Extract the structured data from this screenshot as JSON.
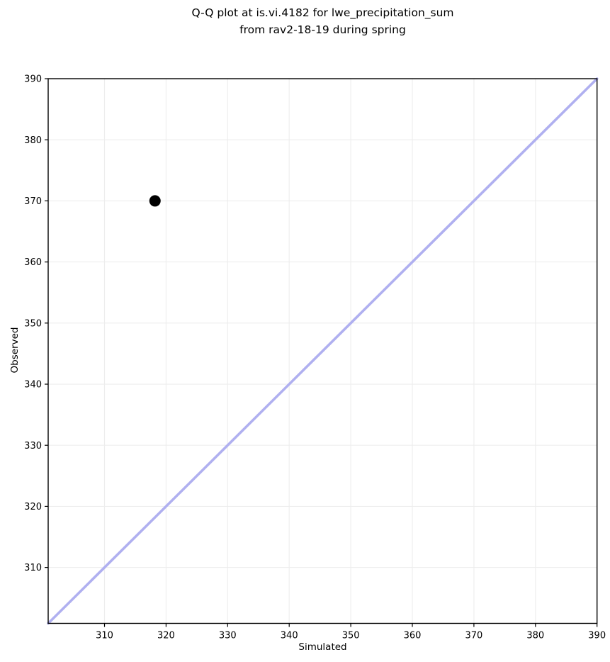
{
  "chart_data": {
    "type": "scatter",
    "title": "Q-Q plot at is.vi.4182 for lwe_precipitation_sum\nfrom rav2-18-19 during spring",
    "xlabel": "Simulated",
    "ylabel": "Observed",
    "xlim": [
      300.85,
      390
    ],
    "ylim": [
      300.85,
      390
    ],
    "x_ticks": [
      310,
      320,
      330,
      340,
      350,
      360,
      370,
      380,
      390
    ],
    "y_ticks": [
      310,
      320,
      330,
      340,
      350,
      360,
      370,
      380,
      390
    ],
    "grid": true,
    "legend": false,
    "points": [
      {
        "x": 318.2,
        "y": 370
      }
    ],
    "identity_line": {
      "x1": 300.85,
      "y1": 300.85,
      "x2": 390,
      "y2": 390
    },
    "colors": {
      "point": "#000000",
      "identity_line": "#b0b0f0",
      "grid": "#ededed",
      "spine": "#000000",
      "text": "#000000",
      "background": "#ffffff"
    }
  }
}
